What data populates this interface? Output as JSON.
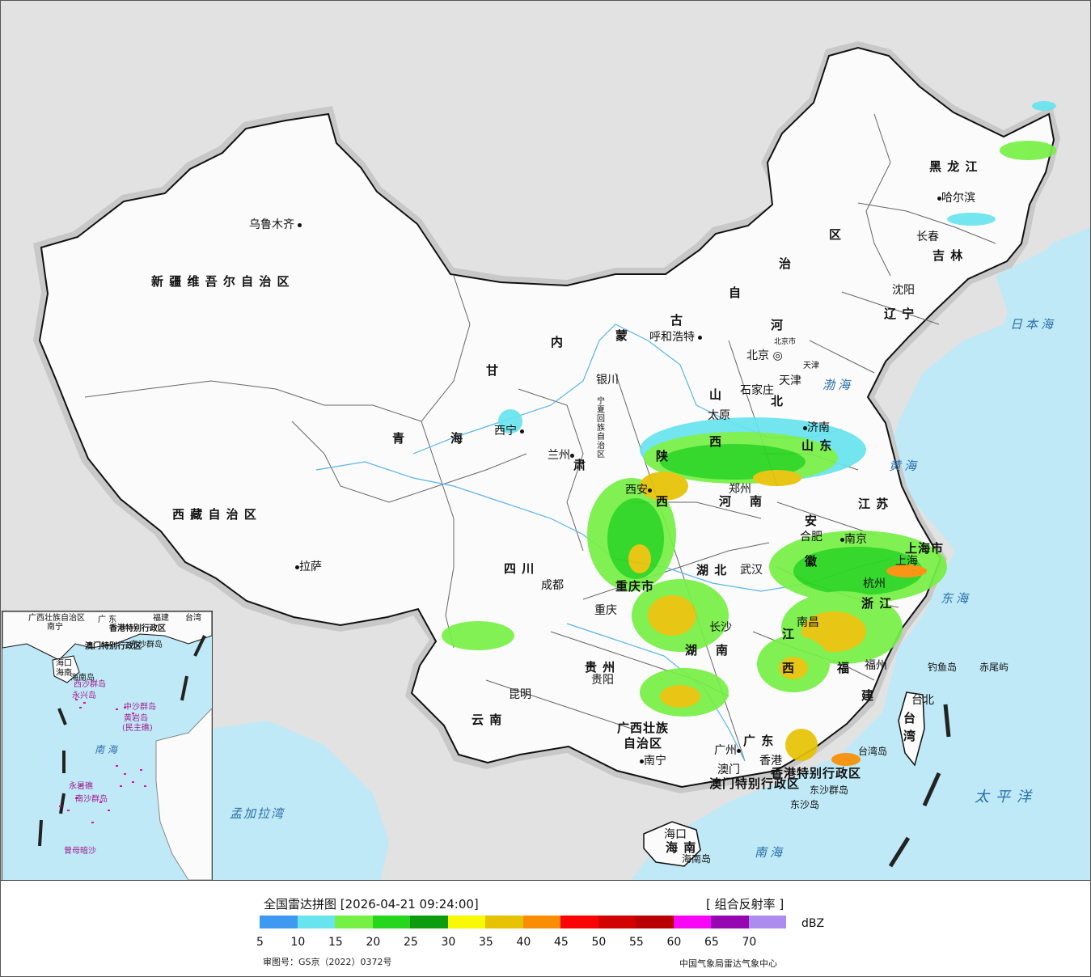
{
  "map": {
    "province_labels": [
      {
        "id": "xinjiang",
        "text": "新 疆 维 吾 尔 自 治 区"
      },
      {
        "id": "xizang",
        "text": "西 藏 自 治 区"
      },
      {
        "id": "qinghai-qing",
        "text": "青"
      },
      {
        "id": "qinghai-hai",
        "text": "海"
      },
      {
        "id": "gansu-gan",
        "text": "甘"
      },
      {
        "id": "gansu-su",
        "text": "肃"
      },
      {
        "id": "neimenggu-nei",
        "text": "内"
      },
      {
        "id": "neimenggu-meng",
        "text": "蒙"
      },
      {
        "id": "neimenggu-gu",
        "text": "古"
      },
      {
        "id": "neimenggu-zi",
        "text": "自"
      },
      {
        "id": "neimenggu-zhi",
        "text": "治"
      },
      {
        "id": "neimenggu-qu",
        "text": "区"
      },
      {
        "id": "heilongjiang",
        "text": "黑 龙 江"
      },
      {
        "id": "jilin",
        "text": "吉 林"
      },
      {
        "id": "liaoning",
        "text": "辽 宁"
      },
      {
        "id": "hebei-he",
        "text": "河"
      },
      {
        "id": "hebei-bei",
        "text": "北"
      },
      {
        "id": "shanxi-shan",
        "text": "山"
      },
      {
        "id": "shanxi-xi",
        "text": "西"
      },
      {
        "id": "shandong",
        "text": "山 东"
      },
      {
        "id": "henan-he",
        "text": "河"
      },
      {
        "id": "henan-nan",
        "text": "南"
      },
      {
        "id": "shaanxi-shan",
        "text": "陕"
      },
      {
        "id": "shaanxi-xi",
        "text": "西"
      },
      {
        "id": "ningxia",
        "text": "宁夏回族自治区"
      },
      {
        "id": "sichuan",
        "text": "四 川"
      },
      {
        "id": "chongqing",
        "text": "重庆市"
      },
      {
        "id": "hubei",
        "text": "湖 北"
      },
      {
        "id": "hunan-hu",
        "text": "湖"
      },
      {
        "id": "hunan-nan",
        "text": "南"
      },
      {
        "id": "anhui-an",
        "text": "安"
      },
      {
        "id": "anhui-hui",
        "text": "徽"
      },
      {
        "id": "jiangsu",
        "text": "江 苏"
      },
      {
        "id": "shanghai",
        "text": "上海市"
      },
      {
        "id": "zhejiang",
        "text": "浙 江"
      },
      {
        "id": "jiangxi-jiang",
        "text": "江"
      },
      {
        "id": "jiangxi-xi",
        "text": "西"
      },
      {
        "id": "fujian-fu",
        "text": "福"
      },
      {
        "id": "fujian-jian",
        "text": "建"
      },
      {
        "id": "guizhou",
        "text": "贵 州"
      },
      {
        "id": "yunnan",
        "text": "云 南"
      },
      {
        "id": "guangxi-1",
        "text": "广西壮族"
      },
      {
        "id": "guangxi-2",
        "text": "自治区"
      },
      {
        "id": "guangdong",
        "text": "广 东"
      },
      {
        "id": "hainan",
        "text": "海 南"
      },
      {
        "id": "taiwan-tai",
        "text": "台"
      },
      {
        "id": "taiwan-wan",
        "text": "湾"
      },
      {
        "id": "xianggang",
        "text": "香港特别行政区"
      },
      {
        "id": "aomen",
        "text": "澳门特别行政区"
      }
    ],
    "cities": [
      {
        "id": "wulumuqi",
        "text": "乌鲁木齐"
      },
      {
        "id": "lasa",
        "text": "拉萨"
      },
      {
        "id": "xining",
        "text": "西宁"
      },
      {
        "id": "lanzhou",
        "text": "兰州"
      },
      {
        "id": "yinchuan",
        "text": "银川"
      },
      {
        "id": "huhehaote",
        "text": "呼和浩特"
      },
      {
        "id": "haerbin",
        "text": "哈尔滨"
      },
      {
        "id": "changchun",
        "text": "长春"
      },
      {
        "id": "shenyang",
        "text": "沈阳"
      },
      {
        "id": "beijing",
        "text": "北京"
      },
      {
        "id": "beijingshi",
        "text": "北京市"
      },
      {
        "id": "tianjin",
        "text": "天津"
      },
      {
        "id": "tianjinshi",
        "text": "天津"
      },
      {
        "id": "shijiazhuang",
        "text": "石家庄"
      },
      {
        "id": "taiyuan",
        "text": "太原"
      },
      {
        "id": "jinan",
        "text": "济南"
      },
      {
        "id": "zhengzhou",
        "text": "郑州"
      },
      {
        "id": "xian",
        "text": "西安"
      },
      {
        "id": "chengdu",
        "text": "成都"
      },
      {
        "id": "chongqing-city",
        "text": "重庆"
      },
      {
        "id": "wuhan",
        "text": "武汉"
      },
      {
        "id": "changsha",
        "text": "长沙"
      },
      {
        "id": "hefei",
        "text": "合肥"
      },
      {
        "id": "nanjing",
        "text": "南京"
      },
      {
        "id": "shanghai-city",
        "text": "上海"
      },
      {
        "id": "hangzhou",
        "text": "杭州"
      },
      {
        "id": "nanchang",
        "text": "南昌"
      },
      {
        "id": "fuzhou",
        "text": "福州"
      },
      {
        "id": "guiyang",
        "text": "贵阳"
      },
      {
        "id": "kunming",
        "text": "昆明"
      },
      {
        "id": "nanning",
        "text": "南宁"
      },
      {
        "id": "guangzhou",
        "text": "广州"
      },
      {
        "id": "aomen-city",
        "text": "澳门"
      },
      {
        "id": "xianggang-city",
        "text": "香港"
      },
      {
        "id": "haikou",
        "text": "海口"
      },
      {
        "id": "taibei",
        "text": "台北"
      }
    ],
    "seas": [
      {
        "id": "ribenhai",
        "text": "日本海"
      },
      {
        "id": "bohai",
        "text": "渤海"
      },
      {
        "id": "huanghai",
        "text": "黄海"
      },
      {
        "id": "donghai",
        "text": "东海"
      },
      {
        "id": "nanhai",
        "text": "南海"
      },
      {
        "id": "taipingyang",
        "text": "太平洋"
      },
      {
        "id": "mengjialawan",
        "text": "孟加拉湾"
      }
    ],
    "islands": [
      {
        "id": "diaoyudao",
        "text": "钓鱼岛"
      },
      {
        "id": "chiweiyu",
        "text": "赤尾屿"
      },
      {
        "id": "taiwandao",
        "text": "台湾岛"
      },
      {
        "id": "dongshaqundao",
        "text": "东沙群岛"
      },
      {
        "id": "dongshadao",
        "text": "东沙岛"
      },
      {
        "id": "hainandao",
        "text": "海南岛"
      }
    ]
  },
  "inset": {
    "labels": [
      {
        "id": "i-guangxi",
        "text": "广西壮族自治区"
      },
      {
        "id": "i-nanning",
        "text": "南宁"
      },
      {
        "id": "i-guangdong",
        "text": "广 东"
      },
      {
        "id": "i-fujian",
        "text": "福建"
      },
      {
        "id": "i-taiwan",
        "text": "台湾"
      },
      {
        "id": "i-xianggang",
        "text": "香港特别行政区"
      },
      {
        "id": "i-aomen",
        "text": "澳门特别行政区"
      },
      {
        "id": "i-dongsha",
        "text": "东沙群岛"
      },
      {
        "id": "i-haikou",
        "text": "海口"
      },
      {
        "id": "i-hainan",
        "text": "海南"
      },
      {
        "id": "i-hainandao",
        "text": "海南岛"
      },
      {
        "id": "i-xisha",
        "text": "西沙群岛"
      },
      {
        "id": "i-yongxing",
        "text": "永兴岛"
      },
      {
        "id": "i-zhongsha",
        "text": "中沙群岛"
      },
      {
        "id": "i-huangyan",
        "text": "黄岩岛"
      },
      {
        "id": "i-minzhujiao",
        "text": "(民主礁)"
      },
      {
        "id": "i-nanhai",
        "text": "南 海"
      },
      {
        "id": "i-yongshu",
        "text": "永暑礁"
      },
      {
        "id": "i-nansha",
        "text": "南沙群岛"
      },
      {
        "id": "i-zengmu",
        "text": "曾母暗沙"
      }
    ]
  },
  "legend": {
    "title": "全国雷达拼图 [2026-04-21 09:24:00]",
    "type": "[ 组合反射率 ]",
    "unit": "dBZ",
    "colors": [
      "#3d99f2",
      "#67e4ee",
      "#76f045",
      "#26d61c",
      "#0d9c0e",
      "#f9f805",
      "#e6c203",
      "#fb8d02",
      "#fa0506",
      "#d20201",
      "#b80000",
      "#f807f6",
      "#9606b2",
      "#ac8cef"
    ],
    "ticks": [
      "5",
      "10",
      "15",
      "20",
      "25",
      "30",
      "35",
      "40",
      "45",
      "50",
      "55",
      "60",
      "65",
      "70"
    ],
    "review_no": "审图号：GS京（2022）0372号",
    "producer": "中国气象局雷达气象中心"
  }
}
